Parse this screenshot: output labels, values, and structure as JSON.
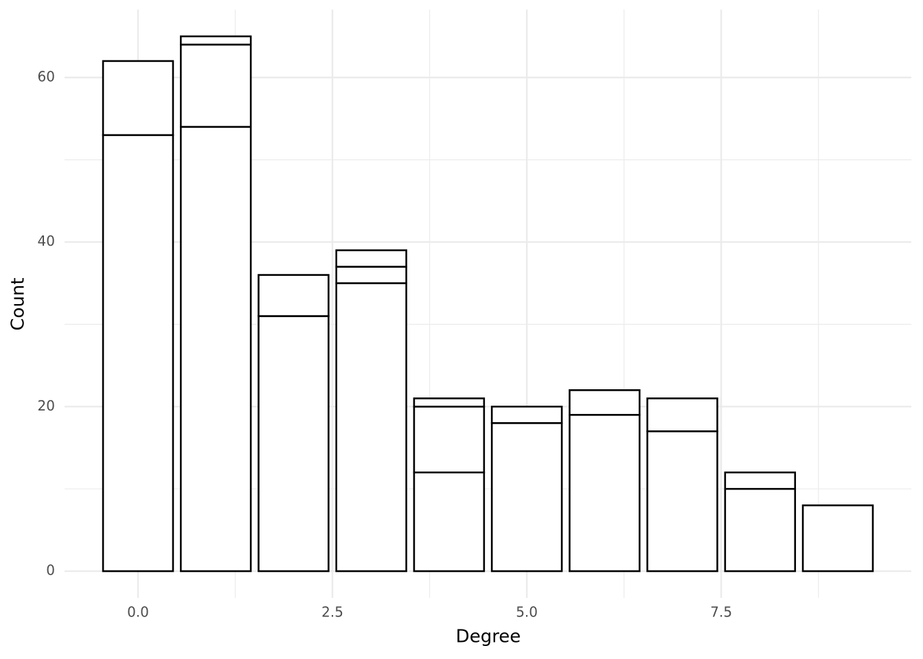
{
  "chart_data": {
    "type": "bar",
    "stacked": true,
    "x_label": "Degree",
    "y_label": "Count",
    "x": [
      0,
      1,
      2,
      3,
      4,
      5,
      6,
      7,
      8,
      9
    ],
    "series": [
      {
        "color": "#ffffff",
        "values": [
          53,
          54,
          31,
          35,
          12,
          18,
          19,
          17,
          10,
          8
        ]
      },
      {
        "color": "#ffffff",
        "values": [
          9,
          10,
          5,
          2,
          8,
          2,
          3,
          4,
          2,
          null
        ]
      },
      {
        "color": "#ffffff",
        "values": [
          null,
          1,
          null,
          2,
          1,
          null,
          null,
          null,
          null,
          null
        ]
      }
    ],
    "edgecolor": "#000000",
    "bar_width": 0.9,
    "xlim": [
      -0.945,
      9.945
    ],
    "ylim": [
      -3.25,
      68.25
    ],
    "xticks": [
      {
        "value": 0,
        "label": "0.0"
      },
      2.5,
      {
        "value": 5,
        "label": "5.0"
      },
      7.5
    ],
    "yticks": [
      0,
      20,
      40,
      60
    ],
    "xminorticks": [
      1.25,
      3.75,
      6.25,
      8.75
    ],
    "yminorticks": [
      10,
      30,
      50
    ],
    "grid": true
  }
}
